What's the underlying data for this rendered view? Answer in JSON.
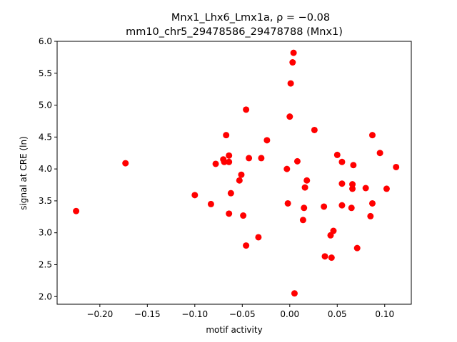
{
  "chart_data": {
    "type": "scatter",
    "title_line1": "Mnx1_Lhx6_Lmx1a, ρ = −0.08",
    "title_line2": "mm10_chr5_29478586_29478788 (Mnx1)",
    "xlabel": "motif activity",
    "ylabel": "signal at CRE (ln)",
    "xlim": [
      -0.245,
      0.128
    ],
    "ylim": [
      1.88,
      6.0
    ],
    "xticks": [
      -0.2,
      -0.15,
      -0.1,
      -0.05,
      0.0,
      0.05,
      0.1
    ],
    "xtick_labels": [
      "−0.20",
      "−0.15",
      "−0.10",
      "−0.05",
      "0.00",
      "0.05",
      "0.10"
    ],
    "yticks": [
      2.0,
      2.5,
      3.0,
      3.5,
      4.0,
      4.5,
      5.0,
      5.5,
      6.0
    ],
    "ytick_labels": [
      "2.0",
      "2.5",
      "3.0",
      "3.5",
      "4.0",
      "4.5",
      "5.0",
      "5.5",
      "6.0"
    ],
    "grid": false,
    "marker_color": "#ff0000",
    "points": [
      {
        "x": -0.225,
        "y": 3.34
      },
      {
        "x": -0.173,
        "y": 4.09
      },
      {
        "x": -0.1,
        "y": 3.59
      },
      {
        "x": -0.083,
        "y": 3.45
      },
      {
        "x": -0.078,
        "y": 4.08
      },
      {
        "x": -0.07,
        "y": 4.15
      },
      {
        "x": -0.069,
        "y": 4.11
      },
      {
        "x": -0.067,
        "y": 4.53
      },
      {
        "x": -0.064,
        "y": 4.21
      },
      {
        "x": -0.064,
        "y": 4.11
      },
      {
        "x": -0.064,
        "y": 3.3
      },
      {
        "x": -0.062,
        "y": 3.62
      },
      {
        "x": -0.053,
        "y": 3.82
      },
      {
        "x": -0.051,
        "y": 3.91
      },
      {
        "x": -0.049,
        "y": 3.27
      },
      {
        "x": -0.046,
        "y": 4.93
      },
      {
        "x": -0.046,
        "y": 2.8
      },
      {
        "x": -0.043,
        "y": 4.17
      },
      {
        "x": -0.033,
        "y": 2.93
      },
      {
        "x": -0.03,
        "y": 4.17
      },
      {
        "x": -0.024,
        "y": 4.45
      },
      {
        "x": -0.003,
        "y": 4.0
      },
      {
        "x": -0.002,
        "y": 3.46
      },
      {
        "x": 0.0,
        "y": 4.82
      },
      {
        "x": 0.001,
        "y": 5.34
      },
      {
        "x": 0.003,
        "y": 5.67
      },
      {
        "x": 0.004,
        "y": 5.82
      },
      {
        "x": 0.005,
        "y": 2.05
      },
      {
        "x": 0.008,
        "y": 4.12
      },
      {
        "x": 0.014,
        "y": 3.2
      },
      {
        "x": 0.015,
        "y": 3.39
      },
      {
        "x": 0.016,
        "y": 3.71
      },
      {
        "x": 0.018,
        "y": 3.82
      },
      {
        "x": 0.026,
        "y": 4.61
      },
      {
        "x": 0.036,
        "y": 3.41
      },
      {
        "x": 0.037,
        "y": 2.63
      },
      {
        "x": 0.043,
        "y": 2.96
      },
      {
        "x": 0.044,
        "y": 2.61
      },
      {
        "x": 0.046,
        "y": 3.03
      },
      {
        "x": 0.05,
        "y": 4.22
      },
      {
        "x": 0.055,
        "y": 4.11
      },
      {
        "x": 0.055,
        "y": 3.77
      },
      {
        "x": 0.055,
        "y": 3.43
      },
      {
        "x": 0.065,
        "y": 3.39
      },
      {
        "x": 0.066,
        "y": 3.76
      },
      {
        "x": 0.066,
        "y": 3.69
      },
      {
        "x": 0.067,
        "y": 4.06
      },
      {
        "x": 0.071,
        "y": 2.76
      },
      {
        "x": 0.08,
        "y": 3.7
      },
      {
        "x": 0.085,
        "y": 3.26
      },
      {
        "x": 0.087,
        "y": 3.46
      },
      {
        "x": 0.087,
        "y": 4.53
      },
      {
        "x": 0.095,
        "y": 4.25
      },
      {
        "x": 0.102,
        "y": 3.69
      },
      {
        "x": 0.112,
        "y": 4.03
      }
    ]
  }
}
